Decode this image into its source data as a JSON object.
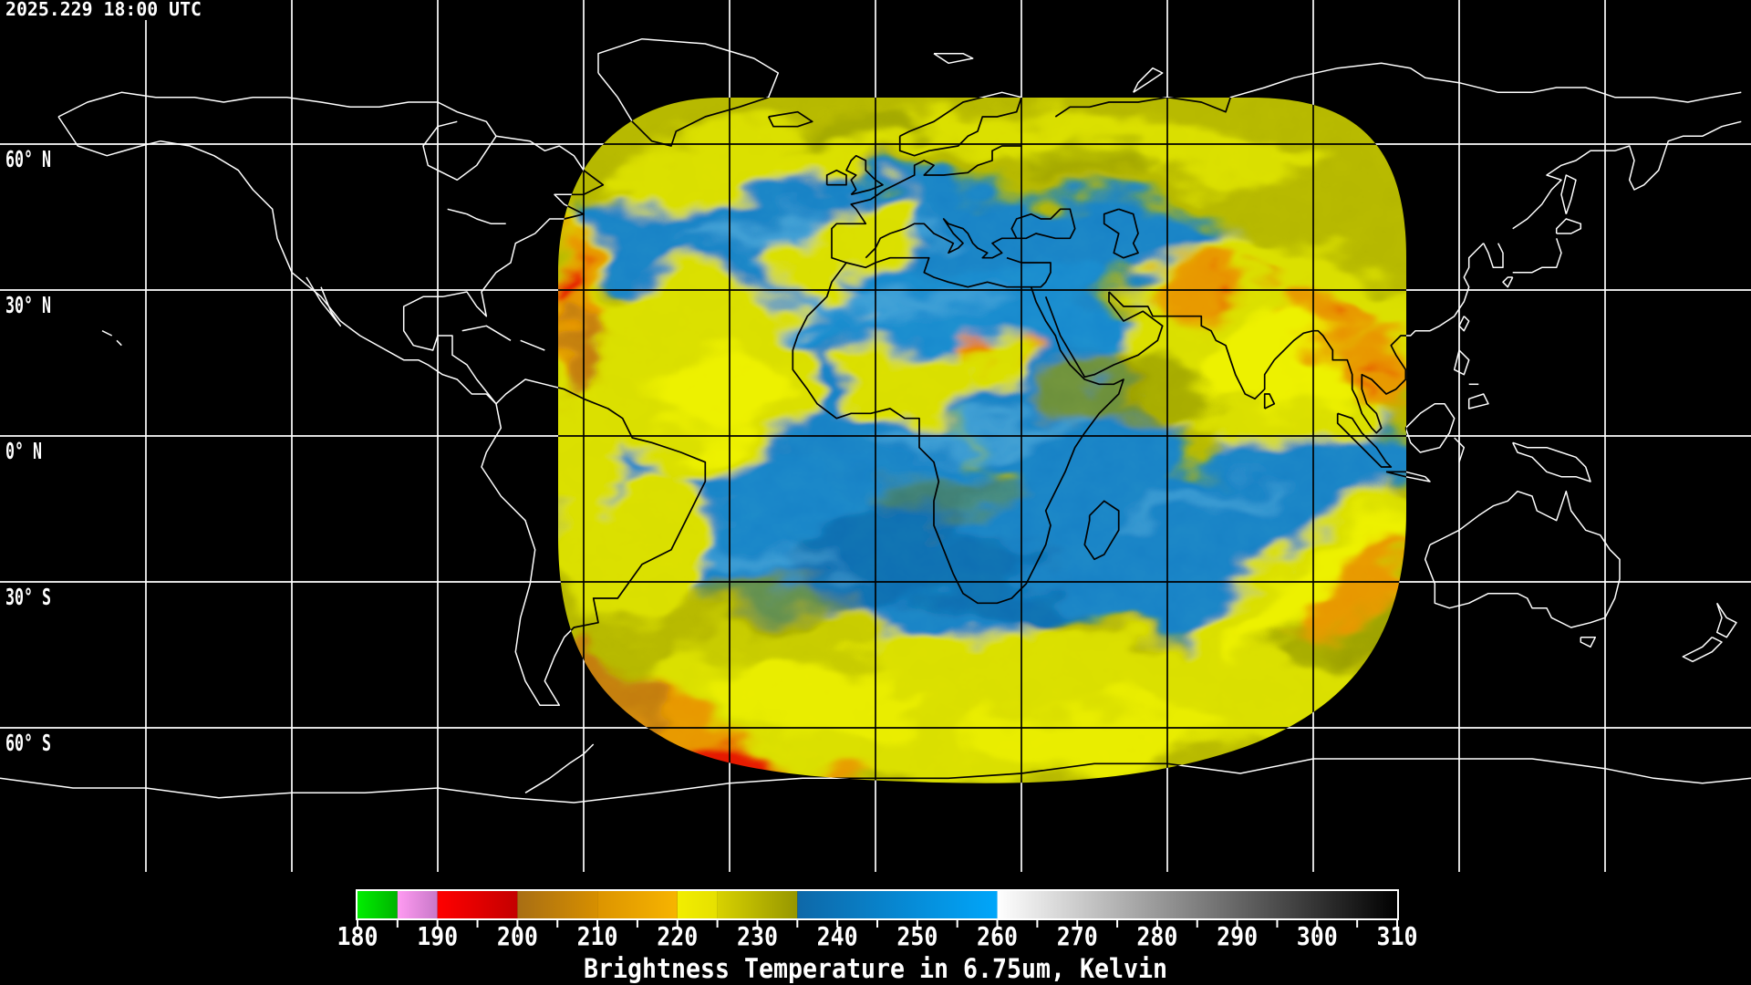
{
  "title_overlay": {
    "timestamp": "2025.229 18:00 UTC"
  },
  "map": {
    "latitude_labels": [
      {
        "text": "60° N"
      },
      {
        "text": "30° N"
      },
      {
        "text": "0° N"
      },
      {
        "text": "30° S"
      },
      {
        "text": "60° S"
      }
    ],
    "grid": {
      "longitude_step_deg": 30,
      "latitude_step_deg": 30
    }
  },
  "colorbar": {
    "caption": "Brightness Temperature in 6.75um, Kelvin",
    "range_kelvin": [
      180,
      310
    ],
    "tick_labels": [
      "180",
      "190",
      "200",
      "210",
      "220",
      "230",
      "240",
      "250",
      "260",
      "270",
      "280",
      "290",
      "300",
      "310"
    ],
    "minor_tick_step": 5,
    "segments": [
      {
        "from": 180,
        "to": 185,
        "color_start": "#00ee00",
        "color_end": "#00b400"
      },
      {
        "from": 185,
        "to": 190,
        "color_start": "#ff9bf2",
        "color_end": "#c878c8"
      },
      {
        "from": 190,
        "to": 200,
        "color_start": "#ff0000",
        "color_end": "#c40000"
      },
      {
        "from": 200,
        "to": 210,
        "color_start": "#a86e14",
        "color_end": "#d68f00"
      },
      {
        "from": 210,
        "to": 220,
        "color_start": "#dc9400",
        "color_end": "#f7b400"
      },
      {
        "from": 220,
        "to": 225,
        "color_start": "#f2ee00",
        "color_end": "#e6e000"
      },
      {
        "from": 225,
        "to": 235,
        "color_start": "#d8d200",
        "color_end": "#969600"
      },
      {
        "from": 235,
        "to": 260,
        "color_start": "#0e68a8",
        "color_end": "#00a6fa"
      },
      {
        "from": 260,
        "to": 310,
        "color_start": "#ffffff",
        "color_end": "#000000"
      }
    ]
  },
  "palette": {
    "background": "#000000",
    "lines_outside_swath": "#ffffff",
    "lines_inside_swath": "#000000",
    "swath_olive_base": "#b4b600",
    "swath_moist_cloud_yellow": "#d9de00",
    "swath_dry_blue": "#1480c6",
    "swath_cold_cloud_orange": "#e79500",
    "swath_coldest_cloud_red": "#e51500"
  }
}
